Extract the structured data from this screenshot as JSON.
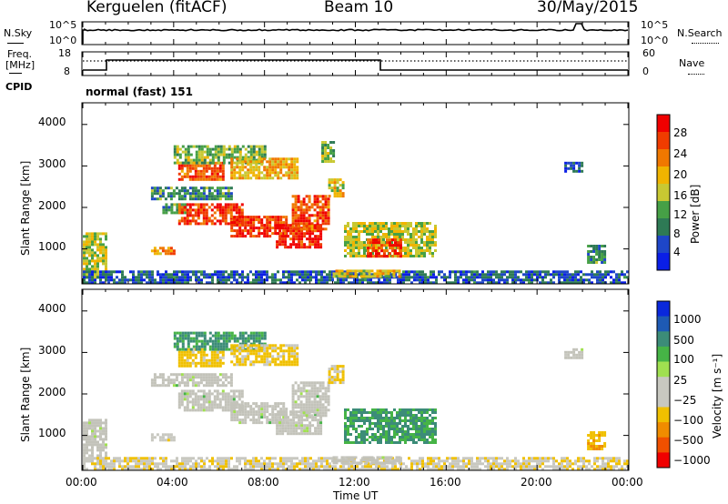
{
  "header": {
    "station": "Kerguelen (fitACF)",
    "beam": "Beam 10",
    "date": "30/May/2015"
  },
  "nsky_panel": {
    "left_label": "N.Sky",
    "right_label": "N.Search",
    "tick_top": "10^5",
    "tick_bottom": "10^0"
  },
  "freq_panel": {
    "left_label_line1": "Freq.",
    "left_label_line2": "[MHz]",
    "left_ticks": [
      "18",
      "8"
    ],
    "right_ticks": [
      "60",
      "0"
    ],
    "right_label": "Nave",
    "cpid_label": "CPID",
    "cpid_value": "normal (fast) 151"
  },
  "colors": {
    "power": [
      "#0a1ee6",
      "#1e46c8",
      "#2e7a55",
      "#46a046",
      "#c8c832",
      "#f0b400",
      "#f07800",
      "#f03c00",
      "#f00000"
    ],
    "velocity": [
      "#f00000",
      "#f05000",
      "#f08c00",
      "#f0c000",
      "#c8c8c0",
      "#c8c8c0",
      "#a0e050",
      "#46b446",
      "#3c8c78",
      "#1e5ab4",
      "#0a28dc"
    ],
    "gray_scatter": "#c3c3ba"
  },
  "chart_data": [
    {
      "type": "heatmap",
      "name_label": "power",
      "x_axis": {
        "range_hours": [
          0,
          24
        ],
        "tick_labels": [
          "00:00",
          "04:00",
          "08:00",
          "12:00",
          "16:00",
          "20:00",
          "00:00"
        ],
        "label": "Time UT"
      },
      "y_axis": {
        "label": "Slant Range [km]",
        "range_km": [
          180,
          4500
        ],
        "tick_values": [
          1000,
          2000,
          3000,
          4000
        ],
        "tick_labels": [
          "1000",
          "2000",
          "3000",
          "4000"
        ]
      },
      "colorbar": {
        "label": "Power [dB]",
        "tick_labels": [
          "28",
          "24",
          "20",
          "16",
          "12",
          "8",
          "4"
        ],
        "range_db": [
          0,
          32
        ]
      },
      "regions": [
        {
          "t0": 0.0,
          "t1": 1.0,
          "r0": 300,
          "r1": 1400,
          "value": 16
        },
        {
          "t0": 0.0,
          "t1": 24.0,
          "r0": 200,
          "r1": 480,
          "value": 6
        },
        {
          "t0": 3.0,
          "t1": 4.0,
          "r0": 900,
          "r1": 1050,
          "value": 22
        },
        {
          "t0": 3.0,
          "t1": 6.5,
          "r0": 2200,
          "r1": 2500,
          "value": 10
        },
        {
          "t0": 3.5,
          "t1": 4.5,
          "r0": 1900,
          "r1": 2100,
          "value": 10
        },
        {
          "t0": 4.2,
          "t1": 6.2,
          "r0": 2700,
          "r1": 3100,
          "value": 26
        },
        {
          "t0": 4.0,
          "t1": 8.0,
          "r0": 3100,
          "r1": 3500,
          "value": 14
        },
        {
          "t0": 4.2,
          "t1": 7.0,
          "r0": 1600,
          "r1": 2100,
          "value": 27
        },
        {
          "t0": 6.5,
          "t1": 9.0,
          "r0": 1300,
          "r1": 1800,
          "value": 28
        },
        {
          "t0": 8.5,
          "t1": 10.5,
          "r0": 1050,
          "r1": 1600,
          "value": 29
        },
        {
          "t0": 6.5,
          "t1": 9.5,
          "r0": 2700,
          "r1": 3200,
          "value": 20
        },
        {
          "t0": 9.2,
          "t1": 10.8,
          "r0": 1500,
          "r1": 2300,
          "value": 26
        },
        {
          "t0": 10.8,
          "t1": 11.5,
          "r0": 2300,
          "r1": 2700,
          "value": 18
        },
        {
          "t0": 10.5,
          "t1": 11.0,
          "r0": 3100,
          "r1": 3600,
          "value": 14
        },
        {
          "t0": 11.5,
          "t1": 15.5,
          "r0": 850,
          "r1": 1650,
          "value": 16
        },
        {
          "t0": 12.5,
          "t1": 14.0,
          "r0": 850,
          "r1": 1250,
          "value": 27
        },
        {
          "t0": 11.0,
          "t1": 14.0,
          "r0": 350,
          "r1": 500,
          "value": 18
        },
        {
          "t0": 21.2,
          "t1": 22.0,
          "r0": 2900,
          "r1": 3100,
          "value": 6
        },
        {
          "t0": 22.2,
          "t1": 23.0,
          "r0": 700,
          "r1": 1100,
          "value": 10
        }
      ]
    },
    {
      "type": "heatmap",
      "name_label": "velocity",
      "x_axis": {
        "range_hours": [
          0,
          24
        ],
        "tick_labels": [
          "00:00",
          "04:00",
          "08:00",
          "12:00",
          "16:00",
          "20:00",
          "00:00"
        ],
        "label": "Time UT"
      },
      "y_axis": {
        "label": "Slant Range [km]",
        "range_km": [
          180,
          4500
        ],
        "tick_values": [
          1000,
          2000,
          3000,
          4000
        ],
        "tick_labels": [
          "1000",
          "2000",
          "3000",
          "4000"
        ]
      },
      "colorbar": {
        "label": "Velocity [m s⁻¹]",
        "tick_labels": [
          "1000",
          "500",
          "100",
          "25",
          "−25",
          "−100",
          "−500",
          "−1000"
        ]
      },
      "regions": [
        {
          "t0": 0.0,
          "t1": 1.0,
          "r0": 300,
          "r1": 1400,
          "value": -20
        },
        {
          "t0": 0.0,
          "t1": 24.0,
          "r0": 200,
          "r1": 480,
          "value": -80
        },
        {
          "t0": 3.0,
          "t1": 4.0,
          "r0": 900,
          "r1": 1050,
          "value": -60
        },
        {
          "t0": 3.0,
          "t1": 6.5,
          "r0": 2200,
          "r1": 2500,
          "value": 0
        },
        {
          "t0": 4.2,
          "t1": 6.2,
          "r0": 2700,
          "r1": 3100,
          "value": -200
        },
        {
          "t0": 4.0,
          "t1": 8.0,
          "r0": 3100,
          "r1": 3500,
          "value": 150
        },
        {
          "t0": 4.2,
          "t1": 7.0,
          "r0": 1600,
          "r1": 2100,
          "value": 0
        },
        {
          "t0": 6.5,
          "t1": 9.0,
          "r0": 1300,
          "r1": 1800,
          "value": 0
        },
        {
          "t0": 8.5,
          "t1": 10.5,
          "r0": 1050,
          "r1": 1600,
          "value": 0
        },
        {
          "t0": 6.5,
          "t1": 9.5,
          "r0": 2700,
          "r1": 3200,
          "value": -150
        },
        {
          "t0": 9.2,
          "t1": 10.8,
          "r0": 1500,
          "r1": 2300,
          "value": 0
        },
        {
          "t0": 10.8,
          "t1": 11.5,
          "r0": 2300,
          "r1": 2700,
          "value": -120
        },
        {
          "t0": 11.5,
          "t1": 15.5,
          "r0": 850,
          "r1": 1650,
          "value": 120
        },
        {
          "t0": 11.0,
          "t1": 14.0,
          "r0": 350,
          "r1": 500,
          "value": 0
        },
        {
          "t0": 21.2,
          "t1": 22.0,
          "r0": 2900,
          "r1": 3100,
          "value": 0
        },
        {
          "t0": 22.2,
          "t1": 23.0,
          "r0": 700,
          "r1": 1100,
          "value": -400
        }
      ]
    }
  ]
}
